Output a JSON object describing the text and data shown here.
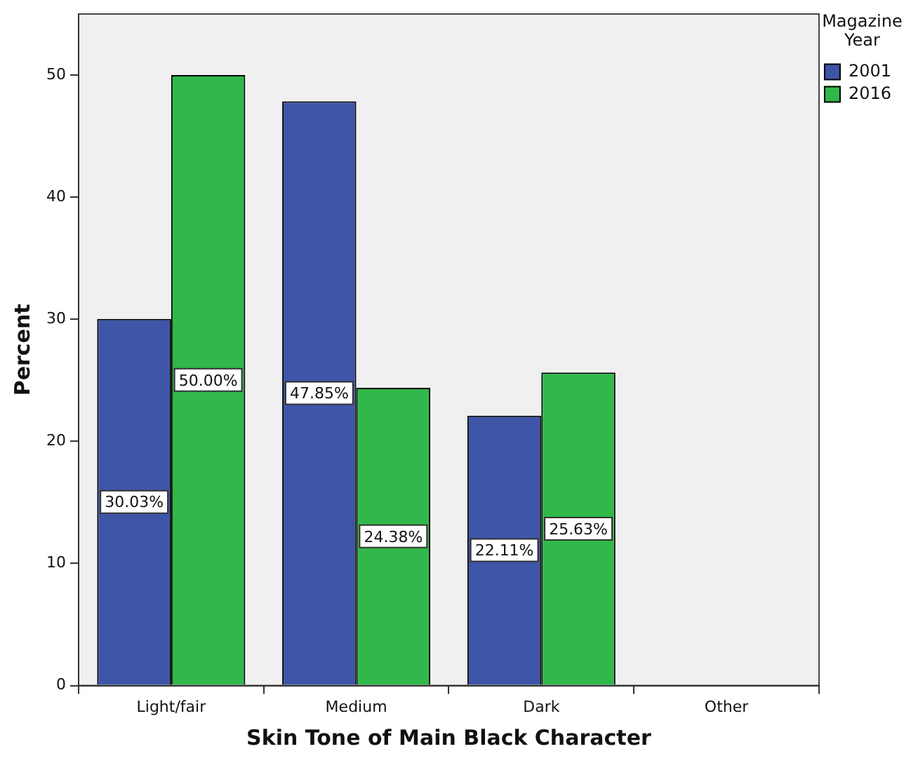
{
  "chart_data": {
    "type": "bar",
    "xlabel": "Skin Tone of Main Black Character",
    "ylabel": "Percent",
    "legend_title": "Magazine Year",
    "categories": [
      "Light/fair",
      "Medium",
      "Dark",
      "Other"
    ],
    "series": [
      {
        "name": "2001",
        "color": "#3e55a8",
        "values": [
          30.03,
          47.85,
          22.11,
          null
        ],
        "value_labels": [
          "30.03%",
          "47.85%",
          "22.11%",
          null
        ]
      },
      {
        "name": "2016",
        "color": "#31b84a",
        "values": [
          50.0,
          24.38,
          25.63,
          null
        ],
        "value_labels": [
          "50.00%",
          "24.38%",
          "25.63%",
          null
        ]
      }
    ],
    "ylim": [
      0,
      55
    ],
    "yticks": [
      0,
      10,
      20,
      30,
      40,
      50
    ],
    "grid": false,
    "legend": "right"
  }
}
